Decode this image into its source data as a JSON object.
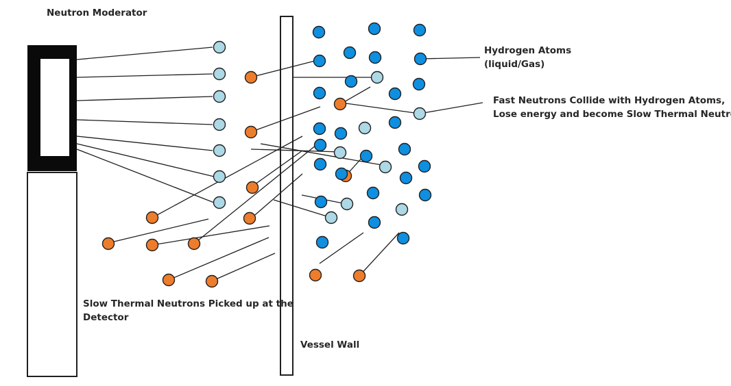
{
  "labels": {
    "neutron_moderator": "Neutron Moderator",
    "hydrogen_atoms_line1": "Hydrogen Atoms",
    "hydrogen_atoms_line2": "(liquid/Gas)",
    "fast_neutrons_line1": "Fast Neutrons Collide with Hydrogen Atoms,",
    "fast_neutrons_line2": "Lose energy and become Slow Thermal Neutrons",
    "slow_thermal_line1": "Slow Thermal Neutrons Picked up at the",
    "slow_thermal_line2": "Detector",
    "vessel_wall": "Vessel Wall"
  },
  "colors": {
    "hydrogen_atom": "#0f8fe0",
    "slow_thermal_neutron": "#add8e6",
    "fast_neutron": "#ee7d2b",
    "outline": "#1f1f1f",
    "moderator_block": "#0a0a0a"
  },
  "particle_types": {
    "hydrogen_atom": "hydrogen-atom",
    "slow_thermal_neutron": "slow-thermal-neutron",
    "fast_neutron": "fast-neutron"
  }
}
